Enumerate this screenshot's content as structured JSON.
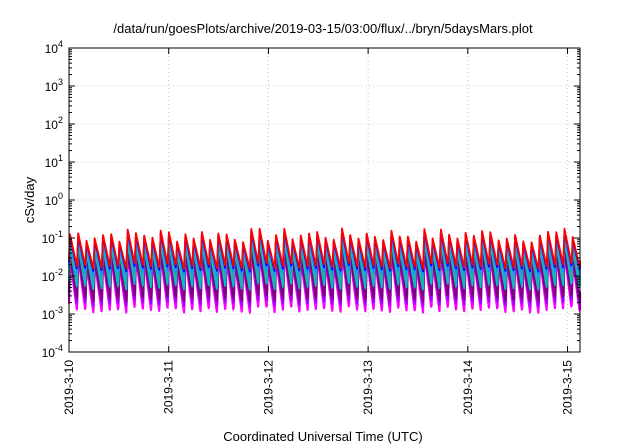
{
  "chart_data": {
    "type": "line",
    "title": "/data/run/goesPlots/archive/2019-03-15/03:00/flux/../bryn/5daysMars.plot",
    "xlabel": "Coordinated Universal Time (UTC)",
    "ylabel": "cSv/day",
    "y_scale": "log",
    "ylim": [
      0.0001,
      10000
    ],
    "y_ticks": [
      {
        "base": "10",
        "exp": "-4"
      },
      {
        "base": "10",
        "exp": "-3"
      },
      {
        "base": "10",
        "exp": "-2"
      },
      {
        "base": "10",
        "exp": "-1"
      },
      {
        "base": "10",
        "exp": "0"
      },
      {
        "base": "10",
        "exp": "1"
      },
      {
        "base": "10",
        "exp": "2"
      },
      {
        "base": "10",
        "exp": "3"
      },
      {
        "base": "10",
        "exp": "4"
      }
    ],
    "x_range": [
      "2019-03-10",
      "2019-03-15 03:00"
    ],
    "x_ticks": [
      "2019-3-10",
      "2019-3-11",
      "2019-3-12",
      "2019-3-13",
      "2019-3-14",
      "2019-3-15"
    ],
    "grid": true,
    "pattern": {
      "description_free": true,
      "cycles_per_day": 12,
      "peak_range": [
        0.05,
        0.15
      ],
      "trough_range": [
        0.001,
        0.02
      ]
    },
    "series": [
      {
        "color": "#ff00ff",
        "peak": 0.03,
        "trough": 0.001
      },
      {
        "color": "#a000ff",
        "peak": 0.04,
        "trough": 0.0015
      },
      {
        "color": "#800080",
        "peak": 0.035,
        "trough": 0.002
      },
      {
        "color": "#00c0c0",
        "peak": 0.06,
        "trough": 0.004
      },
      {
        "color": "#20b2aa",
        "peak": 0.07,
        "trough": 0.006
      },
      {
        "color": "#1e90ff",
        "peak": 0.09,
        "trough": 0.009
      },
      {
        "color": "#0000ff",
        "peak": 0.11,
        "trough": 0.012
      },
      {
        "color": "#ff0000",
        "peak": 0.12,
        "trough": 0.014
      }
    ]
  }
}
